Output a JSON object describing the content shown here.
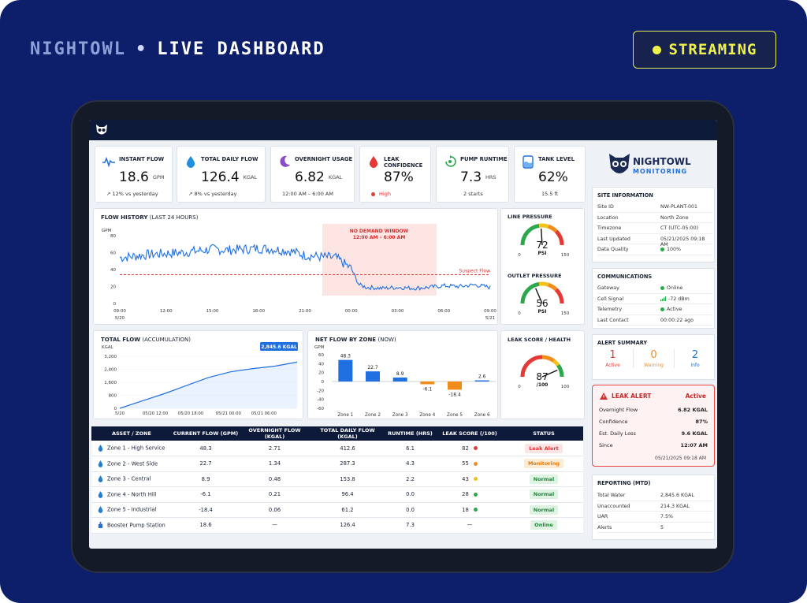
{
  "header": {
    "brand": "NIGHTOWL",
    "separator": "•",
    "title": "LIVE DASHBOARD",
    "status": "STREAMING"
  },
  "colors": {
    "navy": "#0d1f6b",
    "accent": "#1f6fe0",
    "stream": "#eef24a",
    "alert": "#e53935",
    "warn": "#f08c1a",
    "ok": "#2aa84a"
  },
  "kpis": [
    {
      "icon": "wave-icon",
      "title": "INSTANT FLOW",
      "value": "18.6",
      "unit": "GPM",
      "sub": "↗  12% vs yesterday"
    },
    {
      "icon": "droplet-icon",
      "title": "TOTAL DAILY FLOW",
      "value": "126.4",
      "unit": "KGAL",
      "sub": "↗  8% vs yesterday"
    },
    {
      "icon": "moon-icon",
      "title": "OVERNIGHT USAGE",
      "value": "6.82",
      "unit": "KGAL",
      "sub": "12:00 AM – 6:00 AM"
    },
    {
      "icon": "droplet-red-icon",
      "title": "LEAK CONFIDENCE",
      "value": "87%",
      "unit": "",
      "sub": "High"
    },
    {
      "icon": "pump-icon",
      "title": "PUMP RUNTIME",
      "value": "7.3",
      "unit": "HRS",
      "sub": "2 starts"
    },
    {
      "icon": "tank-icon",
      "title": "TANK LEVEL",
      "value": "62%",
      "unit": "",
      "sub": "15.5 ft"
    }
  ],
  "flow_history": {
    "title": "FLOW HISTORY",
    "title_note": "(LAST 24 HOURS)",
    "unit": "GPM",
    "yticks": [
      "80",
      "60",
      "40",
      "20",
      "0"
    ],
    "xticks": [
      "09:00",
      "12:00",
      "15:00",
      "18:00",
      "21:00",
      "00:00",
      "03:00",
      "06:00",
      "09:00"
    ],
    "date_left": "5/20",
    "date_right": "5/21",
    "window_label": "NO DEMAND WINDOW",
    "window_time": "12:00 AM – 6:00 AM",
    "threshold_label": "Suspect Flow"
  },
  "total_flow": {
    "title": "TOTAL FLOW",
    "title_note": "(ACCUMULATION)",
    "unit": "KGAL",
    "yticks": [
      "3,200",
      "2,400",
      "1,600",
      "800",
      "0"
    ],
    "xticks": [
      "5/20",
      "05/20 12:00",
      "05/20 18:00",
      "05/21 00:00",
      "05/21 06:00"
    ],
    "callout": "2,845.6 KGAL"
  },
  "net_flow": {
    "title": "NET FLOW BY ZONE",
    "title_note": "(NOW)",
    "unit": "GPM",
    "yticks": [
      "60",
      "40",
      "20",
      "0",
      "-20",
      "-40",
      "-60"
    ]
  },
  "gauges": [
    {
      "title": "LINE PRESSURE",
      "value": "72",
      "unit": "PSI",
      "min": "0",
      "max": "150",
      "fraction": 0.48
    },
    {
      "title": "OUTLET PRESSURE",
      "value": "56",
      "unit": "PSI",
      "min": "0",
      "max": "150",
      "fraction": 0.37
    },
    {
      "title": "LEAK SCORE / HEALTH",
      "value": "87",
      "unit": "/100",
      "min": "0",
      "max": "100",
      "fraction": 0.87
    }
  ],
  "table": {
    "headers": [
      "ASSET / ZONE",
      "CURRENT FLOW (GPM)",
      "OVERNIGHT FLOW (KGAL)",
      "TOTAL DAILY FLOW (KGAL)",
      "RUNTIME (HRS)",
      "LEAK SCORE (/100)",
      "STATUS"
    ],
    "rows": [
      {
        "asset": "Zone 1 - High Service",
        "current": "48.3",
        "overnight": "2.71",
        "daily": "412.6",
        "runtime": "6.1",
        "score": "82",
        "score_color": "#e53935",
        "status": "Leak Alert",
        "status_kind": "leak"
      },
      {
        "asset": "Zone 2 - West Side",
        "current": "22.7",
        "overnight": "1.34",
        "daily": "287.3",
        "runtime": "4.3",
        "score": "55",
        "score_color": "#f08c1a",
        "status": "Monitoring",
        "status_kind": "mon"
      },
      {
        "asset": "Zone 3 - Central",
        "current": "8.9",
        "overnight": "0.48",
        "daily": "153.8",
        "runtime": "2.2",
        "score": "43",
        "score_color": "#f2c21a",
        "status": "Normal",
        "status_kind": "nor"
      },
      {
        "asset": "Zone 4 - North Hill",
        "current": "-6.1",
        "overnight": "0.21",
        "daily": "96.4",
        "runtime": "0.0",
        "score": "28",
        "score_color": "#2aa84a",
        "status": "Normal",
        "status_kind": "nor"
      },
      {
        "asset": "Zone 5 - Industrial",
        "current": "-18.4",
        "overnight": "0.06",
        "daily": "61.2",
        "runtime": "0.0",
        "score": "18",
        "score_color": "#2aa84a",
        "status": "Normal",
        "status_kind": "nor"
      },
      {
        "asset": "Booster Pump Station",
        "current": "18.6",
        "overnight": "—",
        "daily": "126.4",
        "runtime": "7.3",
        "score": "—",
        "score_color": "",
        "status": "Online",
        "status_kind": "onl"
      }
    ]
  },
  "sidebar": {
    "logo_top": "NIGHTOWL",
    "logo_bottom": "MONITORING",
    "site_title": "SITE INFORMATION",
    "site": [
      {
        "k": "Site ID",
        "v": "NW-PLANT-001"
      },
      {
        "k": "Location",
        "v": "North Zone"
      },
      {
        "k": "Timezone",
        "v": "CT (UTC-05:00)"
      },
      {
        "k": "Last Updated",
        "v": "05/21/2025 09:18 AM"
      },
      {
        "k": "Data Quality",
        "v": "100%"
      }
    ],
    "comm_title": "COMMUNICATIONS",
    "comm": [
      {
        "k": "Gateway",
        "v": "Online"
      },
      {
        "k": "Cell Signal",
        "v": "-72 dBm"
      },
      {
        "k": "Telemetry",
        "v": "Active"
      },
      {
        "k": "Last Contact",
        "v": "00:00:22 ago"
      }
    ],
    "alert_title": "ALERT SUMMARY",
    "alerts": [
      {
        "n": "1",
        "label": "Active",
        "color": "#e53935"
      },
      {
        "n": "0",
        "label": "Warning",
        "color": "#f08c1a"
      },
      {
        "n": "2",
        "label": "Info",
        "color": "#1f6fe0"
      }
    ],
    "leak": {
      "title": "LEAK ALERT",
      "state": "Active",
      "rows": [
        {
          "k": "Overnight Flow",
          "v": "6.82 KGAL"
        },
        {
          "k": "Confidence",
          "v": "87%"
        },
        {
          "k": "Est. Daily Loss",
          "v": "9.6 KGAL"
        },
        {
          "k": "Since",
          "v": "12:07 AM"
        }
      ],
      "stamp": "05/21/2025 09:18 AM"
    },
    "report_title": "REPORTING (MTD)",
    "report": [
      {
        "k": "Total Water",
        "v": "2,845.6 KGAL"
      },
      {
        "k": "Unaccounted",
        "v": "214.3 KGAL"
      },
      {
        "k": "UAR",
        "v": "7.5%"
      },
      {
        "k": "Alerts",
        "v": "5"
      }
    ]
  },
  "chart_data": [
    {
      "type": "line",
      "title": "FLOW HISTORY (LAST 24 HOURS)",
      "ylabel": "GPM",
      "ylim": [
        0,
        80
      ],
      "x": [
        "09:00",
        "10:00",
        "11:00",
        "12:00",
        "13:00",
        "14:00",
        "15:00",
        "16:00",
        "17:00",
        "18:00",
        "19:00",
        "20:00",
        "21:00",
        "22:00",
        "23:00",
        "00:00",
        "00:30",
        "01:00",
        "02:00",
        "03:00",
        "04:00",
        "05:00",
        "06:00",
        "07:00",
        "08:00",
        "09:00"
      ],
      "series": [
        {
          "values": [
            54,
            56,
            58,
            59,
            60,
            62,
            64,
            63,
            64,
            65,
            64,
            62,
            57,
            55,
            54,
            41,
            22,
            19,
            18,
            19,
            18,
            19,
            21,
            20,
            22,
            19
          ]
        }
      ],
      "threshold": {
        "value": 34,
        "label": "Suspect Flow"
      },
      "shaded_window": [
        "00:00",
        "06:00"
      ]
    },
    {
      "type": "area",
      "title": "TOTAL FLOW (ACCUMULATION)",
      "ylabel": "KGAL",
      "ylim": [
        0,
        3400
      ],
      "x": [
        "5/20 09:00",
        "5/20 12:00",
        "5/20 15:00",
        "5/20 18:00",
        "5/20 21:00",
        "5/21 00:00",
        "5/21 03:00",
        "5/21 06:00",
        "5/21 09:00"
      ],
      "series": [
        {
          "values": [
            0,
            450,
            900,
            1400,
            1900,
            2250,
            2450,
            2600,
            2845.6
          ]
        }
      ]
    },
    {
      "type": "bar",
      "title": "NET FLOW BY ZONE (NOW)",
      "ylabel": "GPM",
      "ylim": [
        -60,
        60
      ],
      "categories": [
        "Zone 1",
        "Zone 2",
        "Zone 3",
        "Zone 4",
        "Zone 5",
        "Zone 6"
      ],
      "values": [
        48.3,
        22.7,
        8.9,
        -6.1,
        -18.4,
        2.6
      ]
    }
  ]
}
